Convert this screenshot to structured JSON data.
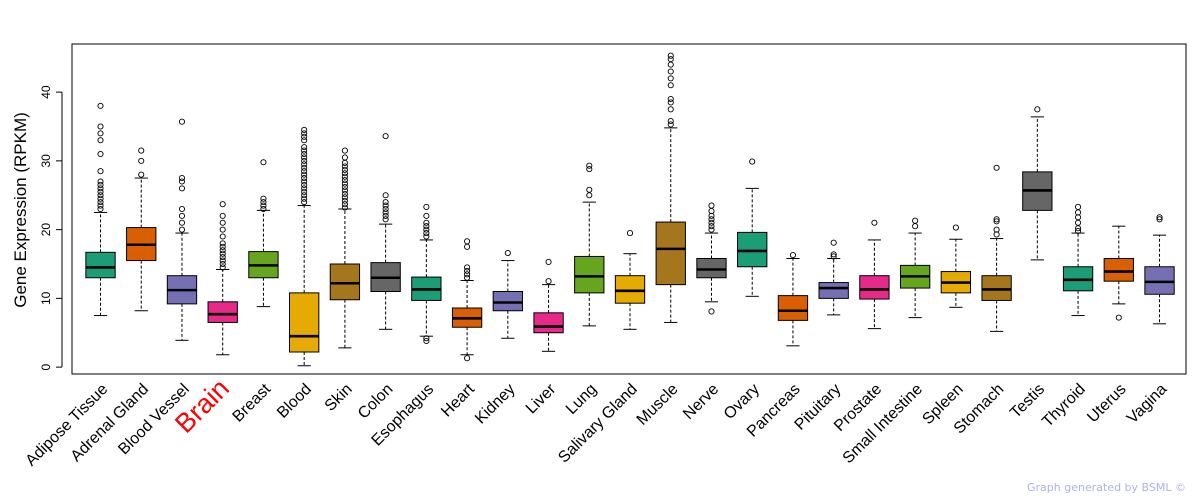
{
  "chart_data": {
    "type": "boxplot",
    "title": "",
    "xlabel": "",
    "ylabel": "Gene Expression (RPKM)",
    "ylim": [
      -1,
      47
    ],
    "yticks": [
      0,
      10,
      20,
      30,
      40
    ],
    "highlight_color": "#ff0000",
    "highlight_category": "Brain",
    "categories": [
      {
        "name": "Adipose Tissue",
        "color": "#1b9e77",
        "min": 7.5,
        "q1": 13.0,
        "median": 14.5,
        "q3": 16.7,
        "max": 22.5,
        "outliers": [
          23,
          23.5,
          24,
          24.5,
          25,
          25.5,
          26,
          26.5,
          27,
          28.5,
          31,
          33,
          34,
          35,
          38
        ]
      },
      {
        "name": "Adrenal Gland",
        "color": "#d95f02",
        "min": 8.2,
        "q1": 15.5,
        "median": 17.8,
        "q3": 20.3,
        "max": 27.5,
        "outliers": [
          28,
          30,
          31.5
        ]
      },
      {
        "name": "Blood Vessel",
        "color": "#7570b3",
        "min": 3.9,
        "q1": 9.2,
        "median": 11.2,
        "q3": 13.3,
        "max": 19.5,
        "outliers": [
          20,
          21,
          22,
          23,
          26,
          27,
          27.5,
          35.7
        ]
      },
      {
        "name": "Brain",
        "color": "#e7298a",
        "min": 1.8,
        "q1": 6.5,
        "median": 7.7,
        "q3": 9.5,
        "max": 14.2,
        "outliers": [
          14.5,
          15,
          15.5,
          16,
          16.5,
          17,
          17.5,
          18,
          19,
          20,
          21,
          22,
          23.7
        ]
      },
      {
        "name": "Breast",
        "color": "#66a61e",
        "min": 8.8,
        "q1": 13.0,
        "median": 14.8,
        "q3": 16.8,
        "max": 22.8,
        "outliers": [
          23,
          23.5,
          24,
          24.5,
          29.8
        ]
      },
      {
        "name": "Blood",
        "color": "#e6ab02",
        "min": 0.2,
        "q1": 2.2,
        "median": 4.5,
        "q3": 10.8,
        "max": 23.5,
        "outliers": [
          24,
          24.5,
          25,
          25.5,
          26,
          26.5,
          27,
          27.5,
          28,
          28.5,
          29,
          29.5,
          30,
          30.5,
          31,
          31.5,
          32,
          33,
          33.5,
          34,
          34.5
        ]
      },
      {
        "name": "Skin",
        "color": "#a6761d",
        "min": 2.8,
        "q1": 9.8,
        "median": 12.2,
        "q3": 15.0,
        "max": 23.0,
        "outliers": [
          23.2,
          23.7,
          24.2,
          24.7,
          25.2,
          25.7,
          26.2,
          26.7,
          27.2,
          27.7,
          28.2,
          28.7,
          29.2,
          29.7,
          30.5,
          31.5
        ]
      },
      {
        "name": "Colon",
        "color": "#666666",
        "min": 5.5,
        "q1": 11.0,
        "median": 13.0,
        "q3": 15.2,
        "max": 20.8,
        "outliers": [
          21.5,
          22,
          22.5,
          23,
          23.5,
          24,
          25,
          33.6
        ]
      },
      {
        "name": "Esophagus",
        "color": "#1b9e77",
        "min": 4.5,
        "q1": 9.7,
        "median": 11.3,
        "q3": 13.1,
        "max": 18.5,
        "outliers": [
          3.8,
          4.2,
          19,
          19.5,
          20,
          20.5,
          21,
          22,
          23.3
        ]
      },
      {
        "name": "Heart",
        "color": "#d95f02",
        "min": 1.8,
        "q1": 5.8,
        "median": 7.1,
        "q3": 8.6,
        "max": 12.6,
        "outliers": [
          1.3,
          13,
          13.5,
          14,
          14.5,
          17.5,
          18.3
        ]
      },
      {
        "name": "Kidney",
        "color": "#7570b3",
        "min": 4.2,
        "q1": 8.2,
        "median": 9.4,
        "q3": 11.0,
        "max": 15.5,
        "outliers": [
          16.6
        ]
      },
      {
        "name": "Liver",
        "color": "#e7298a",
        "min": 2.3,
        "q1": 5.0,
        "median": 5.9,
        "q3": 7.9,
        "max": 12.0,
        "outliers": [
          12.5,
          15.3
        ]
      },
      {
        "name": "Lung",
        "color": "#66a61e",
        "min": 6.0,
        "q1": 10.8,
        "median": 13.2,
        "q3": 16.1,
        "max": 24.0,
        "outliers": [
          25,
          25.8,
          28.8,
          29.3
        ]
      },
      {
        "name": "Salivary Gland",
        "color": "#e6ab02",
        "min": 5.5,
        "q1": 9.3,
        "median": 11.1,
        "q3": 13.3,
        "max": 16.5,
        "outliers": [
          19.5
        ]
      },
      {
        "name": "Muscle",
        "color": "#a6761d",
        "min": 6.5,
        "q1": 12.0,
        "median": 17.2,
        "q3": 21.1,
        "max": 34.8,
        "outliers": [
          35.3,
          35.8,
          37.5,
          38.5,
          39,
          41,
          42,
          43,
          44,
          44.8,
          45.3
        ]
      },
      {
        "name": "Nerve",
        "color": "#666666",
        "min": 9.5,
        "q1": 13.0,
        "median": 14.2,
        "q3": 15.8,
        "max": 19.5,
        "outliers": [
          8.1,
          20,
          20.5,
          21,
          21.5,
          22,
          22.7,
          23.5
        ]
      },
      {
        "name": "Ovary",
        "color": "#1b9e77",
        "min": 10.3,
        "q1": 14.6,
        "median": 16.9,
        "q3": 19.6,
        "max": 26.0,
        "outliers": [
          29.9
        ]
      },
      {
        "name": "Pancreas",
        "color": "#d95f02",
        "min": 3.1,
        "q1": 6.8,
        "median": 8.2,
        "q3": 10.4,
        "max": 15.8,
        "outliers": [
          16.3
        ]
      },
      {
        "name": "Pituitary",
        "color": "#7570b3",
        "min": 7.6,
        "q1": 10.0,
        "median": 11.5,
        "q3": 12.3,
        "max": 15.8,
        "outliers": [
          16.1,
          16.4,
          18.1
        ]
      },
      {
        "name": "Prostate",
        "color": "#e7298a",
        "min": 5.6,
        "q1": 9.9,
        "median": 11.3,
        "q3": 13.3,
        "max": 18.5,
        "outliers": [
          21.0
        ]
      },
      {
        "name": "Small Intestine",
        "color": "#66a61e",
        "min": 7.2,
        "q1": 11.5,
        "median": 13.2,
        "q3": 14.8,
        "max": 19.5,
        "outliers": [
          20.5,
          21.3
        ]
      },
      {
        "name": "Spleen",
        "color": "#e6ab02",
        "min": 8.7,
        "q1": 10.8,
        "median": 12.3,
        "q3": 13.9,
        "max": 18.6,
        "outliers": [
          20.3
        ]
      },
      {
        "name": "Stomach",
        "color": "#a6761d",
        "min": 5.2,
        "q1": 9.7,
        "median": 11.3,
        "q3": 13.3,
        "max": 18.7,
        "outliers": [
          19.3,
          20,
          21.2,
          21.5,
          29.0
        ]
      },
      {
        "name": "Testis",
        "color": "#666666",
        "min": 15.6,
        "q1": 22.8,
        "median": 25.7,
        "q3": 28.4,
        "max": 36.4,
        "outliers": [
          37.5
        ]
      },
      {
        "name": "Thyroid",
        "color": "#1b9e77",
        "min": 7.5,
        "q1": 11.1,
        "median": 12.7,
        "q3": 14.6,
        "max": 19.5,
        "outliers": [
          19.8,
          20.2,
          21,
          21.8,
          22.5,
          23.3
        ]
      },
      {
        "name": "Uterus",
        "color": "#d95f02",
        "min": 9.2,
        "q1": 12.5,
        "median": 13.9,
        "q3": 15.8,
        "max": 20.5,
        "outliers": [
          7.2
        ]
      },
      {
        "name": "Vagina",
        "color": "#7570b3",
        "min": 6.3,
        "q1": 10.6,
        "median": 12.4,
        "q3": 14.6,
        "max": 19.2,
        "outliers": [
          21.5,
          21.8
        ]
      }
    ]
  },
  "footer": {
    "credit": "Graph generated by BSML ©"
  }
}
